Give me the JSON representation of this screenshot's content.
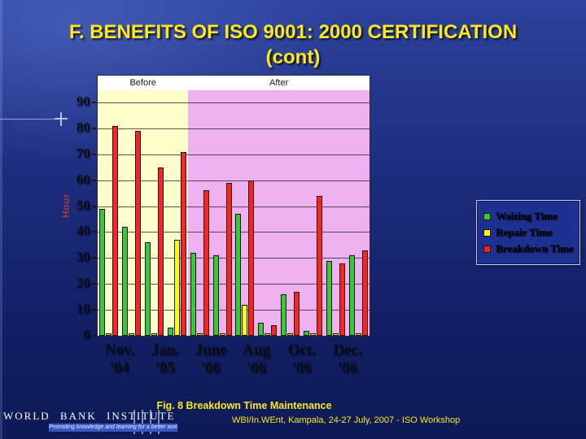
{
  "slide": {
    "title_line1": "F. BENEFITS OF ISO 9001: 2000 CERTIFICATION",
    "title_line2": "(cont)",
    "caption": "Fig. 8 Breakdown Time Maintenance",
    "footer": "WBI/In.WEnt, Kampala,  24-27 July, 2007  - ISO Workshop",
    "title_color": "#ffe81a"
  },
  "logo": {
    "name": "WORLD BANK INSTITUTE",
    "tagline": "Promoting knowledge and learning for a better world"
  },
  "chart_data": {
    "type": "bar",
    "title": "",
    "xlabel": "",
    "ylabel": "Hour",
    "ylim": [
      0,
      90
    ],
    "ytick_step": 10,
    "grid": true,
    "legend_position": "right",
    "regions": [
      {
        "label": "Before",
        "span": [
          0,
          4
        ],
        "color": "#ffffcc"
      },
      {
        "label": "After",
        "span": [
          4,
          12
        ],
        "color": "#efb0ef"
      }
    ],
    "x_labels": [
      {
        "month": "Nov.",
        "year": "'04"
      },
      {
        "month": "Jan.",
        "year": "'05"
      },
      {
        "month": "June",
        "year": "'06"
      },
      {
        "month": "Aug",
        "year": "'06"
      },
      {
        "month": "Oct.",
        "year": "'06"
      },
      {
        "month": "Dec.",
        "year": "'06"
      }
    ],
    "series": [
      {
        "name": "Waiting Time",
        "color": "#33cc33",
        "values": [
          49,
          42,
          36,
          3,
          32,
          31,
          47,
          5,
          16,
          2,
          29,
          31
        ]
      },
      {
        "name": "Repair Time",
        "color": "#ffff00",
        "values": [
          1,
          1,
          1,
          37,
          1,
          1,
          12,
          1,
          1,
          1,
          1,
          1
        ]
      },
      {
        "name": "Breakdown Time",
        "color": "#ff2222",
        "values": [
          81,
          79,
          65,
          71,
          56,
          59,
          60,
          4,
          17,
          54,
          28,
          33
        ]
      }
    ]
  }
}
